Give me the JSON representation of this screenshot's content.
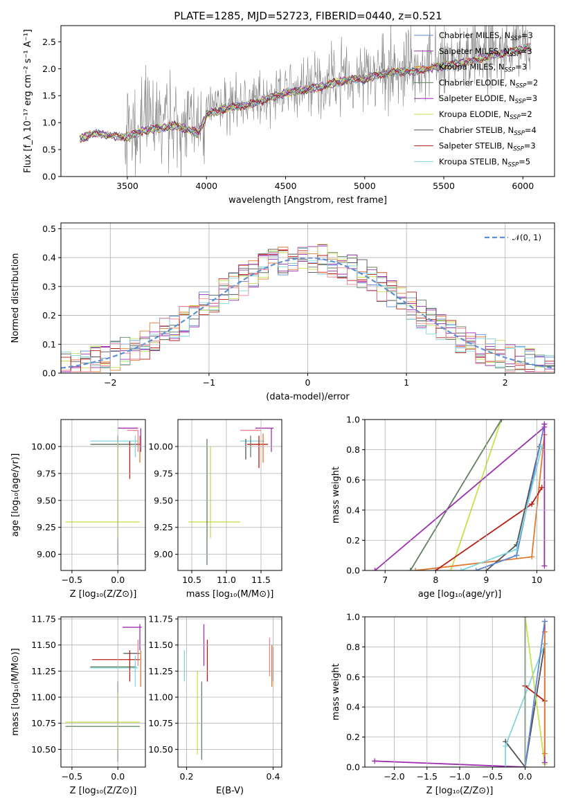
{
  "title": "PLATE=1285, MJD=52723, FIBERID=0440, z=0.521",
  "colors": {
    "chabrier_miles": "#5b86d6",
    "salpeter_miles": "#9d2fae",
    "kroupa_miles": "#e27a2c",
    "chabrier_elodie": "#5e8060",
    "salpeter_elodie": "#9c27b0",
    "kroupa_elodie": "#c6e24d",
    "chabrier_stelib": "#505050",
    "salpeter_stelib": "#b51d12",
    "kroupa_stelib": "#7fd6e0",
    "pink": "#f08090",
    "gauss": "#5b8fd6",
    "spectrum": "#808080"
  },
  "chart_data": [
    {
      "type": "line",
      "id": "spectrum",
      "xlabel": "wavelength [Angstrom, rest frame]",
      "ylabel": "Flux [f_λ 10⁻¹⁷ erg cm⁻² s⁻¹ A⁻¹]",
      "xlim": [
        3080,
        6200
      ],
      "ylim": [
        0,
        2.8
      ],
      "xticks": [
        3500,
        4000,
        4500,
        5000,
        5500,
        6000
      ],
      "yticks": [
        0.0,
        0.5,
        1.0,
        1.5,
        2.0,
        2.5
      ],
      "ytick_labels": [
        "0.0",
        "0.5",
        "1.0",
        "1.5",
        "2.0",
        "2.5"
      ],
      "legend_position": "top-right",
      "continuum_x": [
        3200,
        3300,
        3400,
        3500,
        3600,
        3700,
        3800,
        3900,
        3950,
        4000,
        4100,
        4200,
        4300,
        4400,
        4500,
        4600,
        4700,
        4800,
        4900,
        5000,
        5100,
        5200,
        5300,
        5400,
        5500,
        5600,
        5700,
        5800,
        5900,
        6050
      ],
      "continuum_y": [
        0.75,
        0.85,
        0.8,
        0.78,
        0.9,
        0.95,
        1.0,
        0.9,
        0.85,
        1.2,
        1.3,
        1.35,
        1.4,
        1.5,
        1.6,
        1.65,
        1.7,
        1.78,
        1.85,
        1.85,
        1.95,
        2.0,
        2.0,
        2.05,
        2.1,
        2.15,
        2.2,
        2.3,
        2.35,
        2.45
      ],
      "series": [
        {
          "name": "Chabrier MILES, N_SSP=3",
          "color_key": "chabrier_miles"
        },
        {
          "name": "Salpeter MILES, N_SSP=3",
          "color_key": "salpeter_miles"
        },
        {
          "name": "Kroupa MILES, N_SSP=3",
          "color_key": "kroupa_miles"
        },
        {
          "name": "Chabrier ELODIE, N_SSP=2",
          "color_key": "chabrier_elodie"
        },
        {
          "name": "Salpeter ELODIE, N_SSP=3",
          "color_key": "salpeter_elodie"
        },
        {
          "name": "Kroupa ELODIE, N_SSP=2",
          "color_key": "kroupa_elodie"
        },
        {
          "name": "Chabrier STELIB, N_SSP=4",
          "color_key": "chabrier_stelib"
        },
        {
          "name": "Salpeter STELIB, N_SSP=3",
          "color_key": "salpeter_stelib"
        },
        {
          "name": "Kroupa STELIB, N_SSP=5",
          "color_key": "kroupa_stelib"
        }
      ]
    },
    {
      "type": "bar",
      "id": "residuals",
      "xlabel": "(data-model)/error",
      "ylabel": "Normed distribution",
      "xlim": [
        -2.5,
        2.5
      ],
      "ylim": [
        0,
        0.52
      ],
      "xticks": [
        -2,
        -1,
        0,
        1,
        2
      ],
      "xtick_labels": [
        "−2",
        "−1",
        "0",
        "1",
        "2"
      ],
      "yticks": [
        0.0,
        0.1,
        0.2,
        0.3,
        0.4,
        0.5
      ],
      "ytick_labels": [
        "0.0",
        "0.1",
        "0.2",
        "0.3",
        "0.4",
        "0.5"
      ],
      "legend": "𝒩(0, 1)",
      "legend_position": "top-right",
      "bin_width": 0.1
    },
    {
      "type": "scatter",
      "id": "age-vs-z",
      "xlabel": "Z [log₁₀(Z/Z⊙)]",
      "ylabel": "age  [log₁₀(age/yr)]",
      "xlim": [
        -0.62,
        0.3
      ],
      "ylim": [
        8.85,
        10.25
      ],
      "xticks": [
        -0.5,
        0.0
      ],
      "xtick_labels": [
        "−0.5",
        "0.0"
      ],
      "yticks": [
        9.0,
        9.25,
        9.5,
        9.75,
        10.0
      ],
      "ytick_labels": [
        "9.00",
        "9.25",
        "9.50",
        "9.75",
        "10.00"
      ],
      "errorbars": [
        {
          "x": [
            -0.3,
            0.22
          ],
          "y": 10.05,
          "xerr_only": true,
          "color_key": "kroupa_stelib"
        },
        {
          "x": [
            0.0,
            0.22
          ],
          "y": 10.17,
          "xerr_only": true,
          "color_key": "salpeter_miles"
        },
        {
          "x": [
            -0.28,
            0.24
          ],
          "y": 10.02,
          "xerr_only": true,
          "color_key": "salpeter_stelib"
        },
        {
          "x": [
            -0.3,
            0.2
          ],
          "y": 10.02,
          "xerr_only": true,
          "color_key": "chabrier_elodie"
        },
        {
          "x": [
            0.1,
            0.22
          ],
          "y": 10.15,
          "xerr_only": true,
          "color_key": "pink"
        },
        {
          "x": [
            -0.57,
            0.24
          ],
          "y": 9.3,
          "xerr_only": true,
          "color_key": "kroupa_elodie"
        },
        {
          "y": [
            8.9,
            10.1
          ],
          "x": 0.0,
          "yerr_only": true,
          "color_key": "chabrier_elodie"
        },
        {
          "y": [
            9.15,
            10.05
          ],
          "x": 0.0,
          "yerr_only": true,
          "color_key": "kroupa_elodie"
        },
        {
          "y": [
            9.7,
            10.05
          ],
          "x": 0.13,
          "yerr_only": true,
          "color_key": "salpeter_stelib"
        },
        {
          "y": [
            9.9,
            10.1
          ],
          "x": 0.19,
          "yerr_only": true,
          "color_key": "kroupa_stelib"
        },
        {
          "y": [
            9.95,
            10.17
          ],
          "x": 0.25,
          "yerr_only": true,
          "color_key": "salpeter_miles"
        },
        {
          "y": [
            9.85,
            10.1
          ],
          "x": 0.24,
          "yerr_only": true,
          "color_key": "kroupa_miles"
        },
        {
          "y": [
            9.95,
            10.15
          ],
          "x": 0.22,
          "yerr_only": true,
          "color_key": "pink"
        }
      ]
    },
    {
      "type": "scatter",
      "id": "age-vs-mass",
      "xlabel": "mass [log₁₀(M/M⊙)]",
      "ylabel": "",
      "xlim": [
        10.3,
        11.8
      ],
      "ylim": [
        8.85,
        10.25
      ],
      "xticks": [
        10.5,
        11.0,
        11.5
      ],
      "xtick_labels": [
        "10.5",
        "11.0",
        "11.5"
      ],
      "yticks": [
        9.0,
        9.25,
        9.5,
        9.75,
        10.0
      ],
      "ytick_labels": [
        "9.00",
        "9.25",
        "9.50",
        "9.75",
        "10.00"
      ],
      "errorbars": [
        {
          "x": [
            10.45,
            11.2
          ],
          "y": 9.3,
          "xerr_only": true,
          "color_key": "kroupa_elodie"
        },
        {
          "y": [
            8.9,
            10.07
          ],
          "x": 10.72,
          "yerr_only": true,
          "color_key": "chabrier_elodie"
        },
        {
          "y": [
            9.15,
            10.0
          ],
          "x": 10.77,
          "yerr_only": true,
          "color_key": "kroupa_elodie"
        },
        {
          "x": [
            11.2,
            11.55
          ],
          "y": 10.05,
          "xerr_only": true,
          "color_key": "kroupa_stelib"
        },
        {
          "x": [
            11.2,
            11.5
          ],
          "y": 10.15,
          "xerr_only": true,
          "color_key": "pink"
        },
        {
          "x": [
            11.3,
            11.6
          ],
          "y": 10.02,
          "xerr_only": true,
          "color_key": "salpeter_stelib"
        },
        {
          "x": [
            11.42,
            11.68
          ],
          "y": 10.17,
          "xerr_only": true,
          "color_key": "salpeter_miles"
        },
        {
          "y": [
            9.9,
            10.1
          ],
          "x": 11.35,
          "yerr_only": true,
          "color_key": "chabrier_elodie"
        },
        {
          "y": [
            9.88,
            10.07
          ],
          "x": 11.28,
          "yerr_only": true,
          "color_key": "chabrier_stelib"
        },
        {
          "y": [
            9.8,
            10.1
          ],
          "x": 11.47,
          "yerr_only": true,
          "color_key": "salpeter_stelib"
        },
        {
          "y": [
            9.85,
            10.12
          ],
          "x": 11.53,
          "yerr_only": true,
          "color_key": "kroupa_miles"
        },
        {
          "y": [
            9.95,
            10.17
          ],
          "x": 11.65,
          "yerr_only": true,
          "color_key": "salpeter_miles"
        }
      ]
    },
    {
      "type": "line",
      "id": "massweight-vs-age",
      "xlabel": "age  [log₁₀(age/yr)]",
      "ylabel": "mass weight",
      "xlim": [
        6.6,
        10.35
      ],
      "ylim": [
        0,
        1.0
      ],
      "xticks": [
        7,
        8,
        9,
        10
      ],
      "yticks": [
        0.0,
        0.2,
        0.4,
        0.6,
        0.8,
        1.0
      ],
      "ytick_labels": [
        "0.0",
        "0.2",
        "0.4",
        "0.6",
        "0.8",
        "1.0"
      ],
      "series": [
        {
          "color_key": "kroupa_elodie",
          "x": [
            8.3,
            9.3
          ],
          "y": [
            0.0,
            1.0
          ]
        },
        {
          "color_key": "chabrier_elodie",
          "x": [
            7.5,
            9.3
          ],
          "y": [
            0.0,
            1.0
          ]
        },
        {
          "color_key": "salpeter_miles",
          "x": [
            6.8,
            10.15
          ],
          "y": [
            0.0,
            0.95
          ]
        },
        {
          "color_key": "kroupa_miles",
          "x": [
            7.6,
            9.9,
            10.15
          ],
          "y": [
            0.0,
            0.09,
            0.9
          ]
        },
        {
          "color_key": "salpeter_stelib",
          "x": [
            8.0,
            9.9,
            10.1
          ],
          "y": [
            0.0,
            0.44,
            0.55
          ]
        },
        {
          "color_key": "chabrier_stelib",
          "x": [
            9.0,
            9.6,
            10.05
          ],
          "y": [
            0.0,
            0.17,
            0.82
          ]
        },
        {
          "color_key": "chabrier_miles",
          "x": [
            8.8,
            9.6,
            10.15
          ],
          "y": [
            0.0,
            0.1,
            0.97
          ]
        },
        {
          "color_key": "kroupa_stelib",
          "x": [
            8.5,
            9.6,
            10.1
          ],
          "y": [
            0.0,
            0.14,
            0.82
          ]
        },
        {
          "color_key": "salpeter_miles",
          "x": [
            10.15,
            10.15
          ],
          "y": [
            0.03,
            0.97
          ]
        }
      ]
    },
    {
      "type": "scatter",
      "id": "mass-vs-z",
      "xlabel": "Z [log₁₀(Z/Z⊙)]",
      "ylabel": "mass [log₁₀(M/M⊙)]",
      "xlim": [
        -0.62,
        0.3
      ],
      "ylim": [
        10.33,
        11.77
      ],
      "xticks": [
        -0.5,
        0.0
      ],
      "xtick_labels": [
        "−0.5",
        "0.0"
      ],
      "yticks": [
        10.5,
        10.75,
        11.0,
        11.25,
        11.5,
        11.75
      ],
      "ytick_labels": [
        "10.50",
        "10.75",
        "11.00",
        "11.25",
        "11.50",
        "11.75"
      ],
      "errorbars": [
        {
          "x": [
            -0.57,
            0.24
          ],
          "y": 10.76,
          "xerr_only": true,
          "color_key": "kroupa_elodie"
        },
        {
          "x": [
            -0.57,
            0.24
          ],
          "y": 10.72,
          "xerr_only": true,
          "color_key": "chabrier_elodie"
        },
        {
          "y": [
            10.38,
            11.15
          ],
          "x": 0.0,
          "yerr_only": true,
          "color_key": "chabrier_elodie"
        },
        {
          "y": [
            10.5,
            11.05
          ],
          "x": 0.0,
          "yerr_only": true,
          "color_key": "kroupa_elodie"
        },
        {
          "x": [
            -0.28,
            0.24
          ],
          "y": 11.36,
          "xerr_only": true,
          "color_key": "salpeter_stelib"
        },
        {
          "x": [
            -0.3,
            0.22
          ],
          "y": 11.28,
          "xerr_only": true,
          "color_key": "kroupa_stelib"
        },
        {
          "x": [
            -0.3,
            0.2
          ],
          "y": 11.29,
          "xerr_only": true,
          "color_key": "chabrier_elodie"
        },
        {
          "x": [
            0.05,
            0.26
          ],
          "y": 11.67,
          "xerr_only": true,
          "color_key": "salpeter_miles"
        },
        {
          "x": [
            0.06,
            0.24
          ],
          "y": 11.42,
          "xerr_only": true,
          "color_key": "chabrier_stelib"
        },
        {
          "y": [
            11.15,
            11.45
          ],
          "x": 0.13,
          "yerr_only": true,
          "color_key": "salpeter_stelib"
        },
        {
          "y": [
            11.1,
            11.4
          ],
          "x": 0.19,
          "yerr_only": true,
          "color_key": "kroupa_stelib"
        },
        {
          "y": [
            11.3,
            11.55
          ],
          "x": 0.22,
          "yerr_only": true,
          "color_key": "pink"
        },
        {
          "y": [
            11.1,
            11.45
          ],
          "x": 0.25,
          "yerr_only": true,
          "color_key": "kroupa_miles"
        },
        {
          "y": [
            11.45,
            11.7
          ],
          "x": 0.24,
          "yerr_only": true,
          "color_key": "salpeter_miles"
        }
      ]
    },
    {
      "type": "scatter",
      "id": "mass-vs-ebv",
      "xlabel": "E(B-V)",
      "ylabel": "",
      "xlim": [
        0.18,
        0.42
      ],
      "ylim": [
        10.33,
        11.77
      ],
      "xticks": [
        0.2,
        0.4
      ],
      "xtick_labels": [
        "0.2",
        "0.4"
      ],
      "yticks": [
        10.5,
        10.75,
        11.0,
        11.25,
        11.5,
        11.75
      ],
      "ytick_labels": [
        "10.50",
        "10.75",
        "11.00",
        "11.25",
        "11.50",
        "11.75"
      ],
      "errorbars": [
        {
          "y": [
            11.15,
            11.45
          ],
          "x": 0.195,
          "yerr_only": true,
          "color_key": "kroupa_stelib"
        },
        {
          "y": [
            10.45,
            11.25
          ],
          "x": 0.225,
          "yerr_only": true,
          "color_key": "kroupa_elodie"
        },
        {
          "y": [
            10.4,
            11.15
          ],
          "x": 0.235,
          "yerr_only": true,
          "color_key": "chabrier_elodie"
        },
        {
          "y": [
            11.3,
            11.7
          ],
          "x": 0.24,
          "yerr_only": true,
          "color_key": "salpeter_miles"
        },
        {
          "y": [
            11.15,
            11.55
          ],
          "x": 0.248,
          "yerr_only": true,
          "color_key": "salpeter_stelib"
        },
        {
          "y": [
            11.2,
            11.57
          ],
          "x": 0.392,
          "yerr_only": true,
          "color_key": "pink"
        },
        {
          "y": [
            11.1,
            11.5
          ],
          "x": 0.397,
          "yerr_only": true,
          "color_key": "kroupa_miles"
        },
        {
          "y": [
            11.15,
            11.48
          ],
          "x": 0.4,
          "yerr_only": true,
          "color_key": "chabrier_miles"
        }
      ]
    },
    {
      "type": "line",
      "id": "massweight-vs-z",
      "xlabel": "Z [log₁₀(Z/Z⊙)]",
      "ylabel": "mass weight",
      "xlim": [
        -2.45,
        0.45
      ],
      "ylim": [
        0,
        1.0
      ],
      "xticks": [
        -2.0,
        -1.5,
        -1.0,
        -0.5,
        0.0
      ],
      "xtick_labels": [
        "−2.0",
        "−1.5",
        "−1.0",
        "−0.5",
        "0.0"
      ],
      "yticks": [
        0.0,
        0.2,
        0.4,
        0.6,
        0.8,
        1.0
      ],
      "ytick_labels": [
        "0.0",
        "0.2",
        "0.4",
        "0.6",
        "0.8",
        "1.0"
      ],
      "series": [
        {
          "color_key": "salpeter_miles",
          "x": [
            -2.3,
            0.0
          ],
          "y": [
            0.04,
            0.0
          ]
        },
        {
          "color_key": "chabrier_stelib",
          "x": [
            -0.3,
            0.0,
            0.3
          ],
          "y": [
            0.17,
            0.0,
            0.82
          ]
        },
        {
          "color_key": "kroupa_stelib",
          "x": [
            -0.3,
            -0.3,
            0.3
          ],
          "y": [
            0.0,
            0.14,
            0.82
          ]
        },
        {
          "color_key": "salpeter_stelib",
          "x": [
            0.0,
            0.3
          ],
          "y": [
            0.54,
            0.44
          ]
        },
        {
          "color_key": "kroupa_elodie",
          "x": [
            0.0,
            0.3
          ],
          "y": [
            1.0,
            0.02
          ]
        },
        {
          "color_key": "chabrier_elodie",
          "x": [
            0.0,
            0.0
          ],
          "y": [
            0.0,
            1.0
          ]
        },
        {
          "color_key": "salpeter_miles",
          "x": [
            0.3,
            0.3
          ],
          "y": [
            0.03,
            0.97
          ]
        },
        {
          "color_key": "kroupa_miles",
          "x": [
            0.3,
            0.3
          ],
          "y": [
            0.09,
            0.9
          ]
        },
        {
          "color_key": "chabrier_miles",
          "x": [
            0.0,
            0.3
          ],
          "y": [
            0.0,
            0.97
          ]
        }
      ]
    }
  ]
}
